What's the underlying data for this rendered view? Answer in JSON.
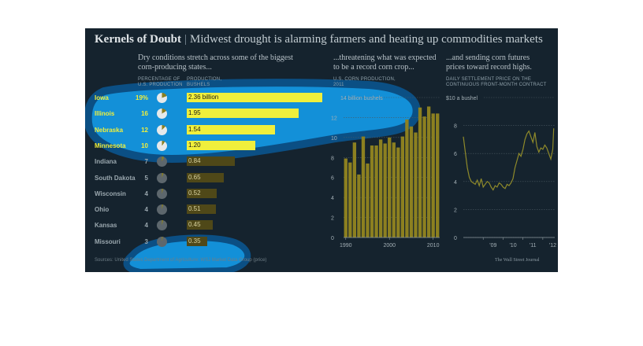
{
  "header": {
    "title_bold": "Kernels of Doubt",
    "title_sep": "|",
    "title_rest": "Midwest drought is alarming farmers and heating up commodities markets"
  },
  "left": {
    "heading": "Dry conditions stretch across some of the biggest corn-producing states...",
    "col1": "PERCENTAGE OF U.S. PRODUCTION",
    "col2": "PRODUCTION, BUSHELS"
  },
  "middle": {
    "heading": "...threatening what was expected to be a record corn crop...",
    "sub": "U.S. CORN PRODUCTION, 2011"
  },
  "right": {
    "heading": "...and sending corn futures prices toward record highs.",
    "sub": "DAILY SETTLEMENT PRICE ON THE CONTINUOUS FRONT-MONTH CONTRACT"
  },
  "footer": {
    "source": "Sources: United States Department of Agriculture; WSJ Market Data Group (price)",
    "credit": "The Wall Street Journal"
  },
  "colors": {
    "panel": "#15232e",
    "bar": "#4f4818",
    "bar_highlight": "#f0ef3c",
    "gold": "#8c8020",
    "highlight_blob": "#1390d8",
    "highlight_ring": "#0b4f84",
    "pie_light": "#c9cdd0",
    "pie_dark": "#5d676d",
    "price_line": "#8f8a2a"
  },
  "chart_data": [
    {
      "type": "bar",
      "title": "Dry conditions stretch across some of the biggest corn-producing states...",
      "categories": [
        "Iowa",
        "Illinois",
        "Nebraska",
        "Minnesota",
        "Indiana",
        "South Dakota",
        "Wisconsin",
        "Ohio",
        "Kansas",
        "Missouri"
      ],
      "pct_labels": [
        "19%",
        "16",
        "12",
        "10",
        "7",
        "5",
        "4",
        "4",
        "4",
        "3"
      ],
      "percent_of_us_production": [
        19,
        16,
        12,
        10,
        7,
        5,
        4,
        4,
        4,
        3
      ],
      "values": [
        2.36,
        1.95,
        1.54,
        1.2,
        0.84,
        0.65,
        0.52,
        0.51,
        0.45,
        0.35
      ],
      "value_labels": [
        "2.36 billion",
        "1.95",
        "1.54",
        "1.20",
        "0.84",
        "0.65",
        "0.52",
        "0.51",
        "0.45",
        "0.35"
      ],
      "highlighted": [
        "Iowa",
        "Illinois",
        "Nebraska",
        "Minnesota"
      ],
      "xlabel": "PRODUCTION, BUSHELS"
    },
    {
      "type": "bar",
      "title": "...threatening what was expected to be a record corn crop...",
      "ylabel": "U.S. CORN PRODUCTION, 2011",
      "x": [
        1990,
        1991,
        1992,
        1993,
        1994,
        1995,
        1996,
        1997,
        1998,
        1999,
        2000,
        2001,
        2002,
        2003,
        2004,
        2005,
        2006,
        2007,
        2008,
        2009,
        2010,
        2011
      ],
      "values": [
        7.9,
        7.5,
        9.5,
        6.3,
        10.1,
        7.4,
        9.2,
        9.2,
        9.8,
        9.4,
        10.0,
        9.5,
        9.0,
        10.1,
        11.8,
        11.1,
        10.5,
        13.0,
        12.1,
        13.1,
        12.4,
        12.4
      ],
      "ylim": [
        0,
        14
      ],
      "yticks": [
        0,
        2,
        4,
        6,
        8,
        10,
        12,
        14
      ],
      "ytick_labels": [
        "0",
        "2",
        "4",
        "6",
        "8",
        "10",
        "12",
        "14 billion bushels"
      ],
      "xtick_labels": [
        "1990",
        "2000",
        "2010"
      ],
      "grid": true
    },
    {
      "type": "line",
      "title": "...and sending corn futures prices toward record highs.",
      "ylabel": "DAILY SETTLEMENT PRICE ON THE CONTINUOUS FRONT-MONTH CONTRACT",
      "x": [
        2008.0,
        2008.1,
        2008.2,
        2008.3,
        2008.4,
        2008.5,
        2008.6,
        2008.7,
        2008.8,
        2008.9,
        2009.0,
        2009.1,
        2009.2,
        2009.3,
        2009.4,
        2009.5,
        2009.6,
        2009.7,
        2009.8,
        2009.9,
        2010.0,
        2010.1,
        2010.2,
        2010.3,
        2010.4,
        2010.5,
        2010.6,
        2010.7,
        2010.8,
        2010.9,
        2011.0,
        2011.1,
        2011.2,
        2011.3,
        2011.4,
        2011.5,
        2011.6,
        2011.7,
        2011.8,
        2011.9,
        2012.0,
        2012.1,
        2012.2,
        2012.3,
        2012.4,
        2012.5,
        2012.55
      ],
      "values": [
        7.2,
        6.1,
        5.0,
        4.3,
        4.0,
        3.9,
        3.8,
        4.1,
        3.7,
        4.2,
        3.6,
        3.8,
        4.0,
        3.9,
        3.6,
        3.4,
        3.7,
        3.6,
        3.9,
        3.8,
        3.6,
        3.5,
        3.8,
        3.7,
        3.9,
        4.2,
        5.0,
        5.5,
        6.0,
        5.8,
        6.3,
        7.0,
        7.4,
        7.6,
        7.2,
        6.8,
        7.5,
        6.5,
        6.1,
        6.4,
        6.3,
        6.6,
        6.4,
        6.0,
        5.6,
        6.3,
        7.8
      ],
      "ylim": [
        0,
        10
      ],
      "yticks": [
        0,
        2,
        4,
        6,
        8,
        10
      ],
      "ytick_labels": [
        "0",
        "2",
        "4",
        "6",
        "8",
        "$10 a bushel"
      ],
      "xtick_labels": [
        "'09",
        "'10",
        "'11",
        "'12"
      ],
      "grid": true
    }
  ]
}
